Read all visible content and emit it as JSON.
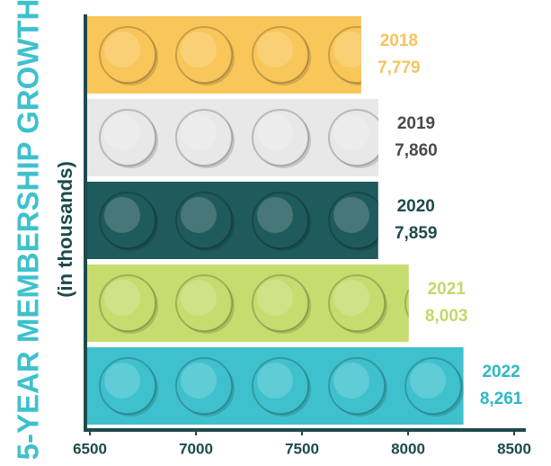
{
  "chart_data": {
    "type": "bar",
    "orientation": "horizontal",
    "title": "5-YEAR MEMBERSHIP GROWTH",
    "subtitle": "(in thousands)",
    "categories": [
      "2018",
      "2019",
      "2020",
      "2021",
      "2022"
    ],
    "values": [
      7779,
      7860,
      7859,
      8003,
      8261
    ],
    "value_labels": [
      "7,779",
      "7,860",
      "7,859",
      "8,003",
      "8,261"
    ],
    "colors": [
      "#f9c65a",
      "#e8e8e8",
      "#1f5a5c",
      "#c6dc6e",
      "#3ec1cc"
    ],
    "label_colors": [
      "#f5c45e",
      "#4a4a4a",
      "#1d4a4c",
      "#c3d866",
      "#2fb8c4"
    ],
    "xlim": [
      6500,
      8500
    ],
    "xticks": [
      6500,
      7000,
      7500,
      8000,
      8500
    ]
  }
}
